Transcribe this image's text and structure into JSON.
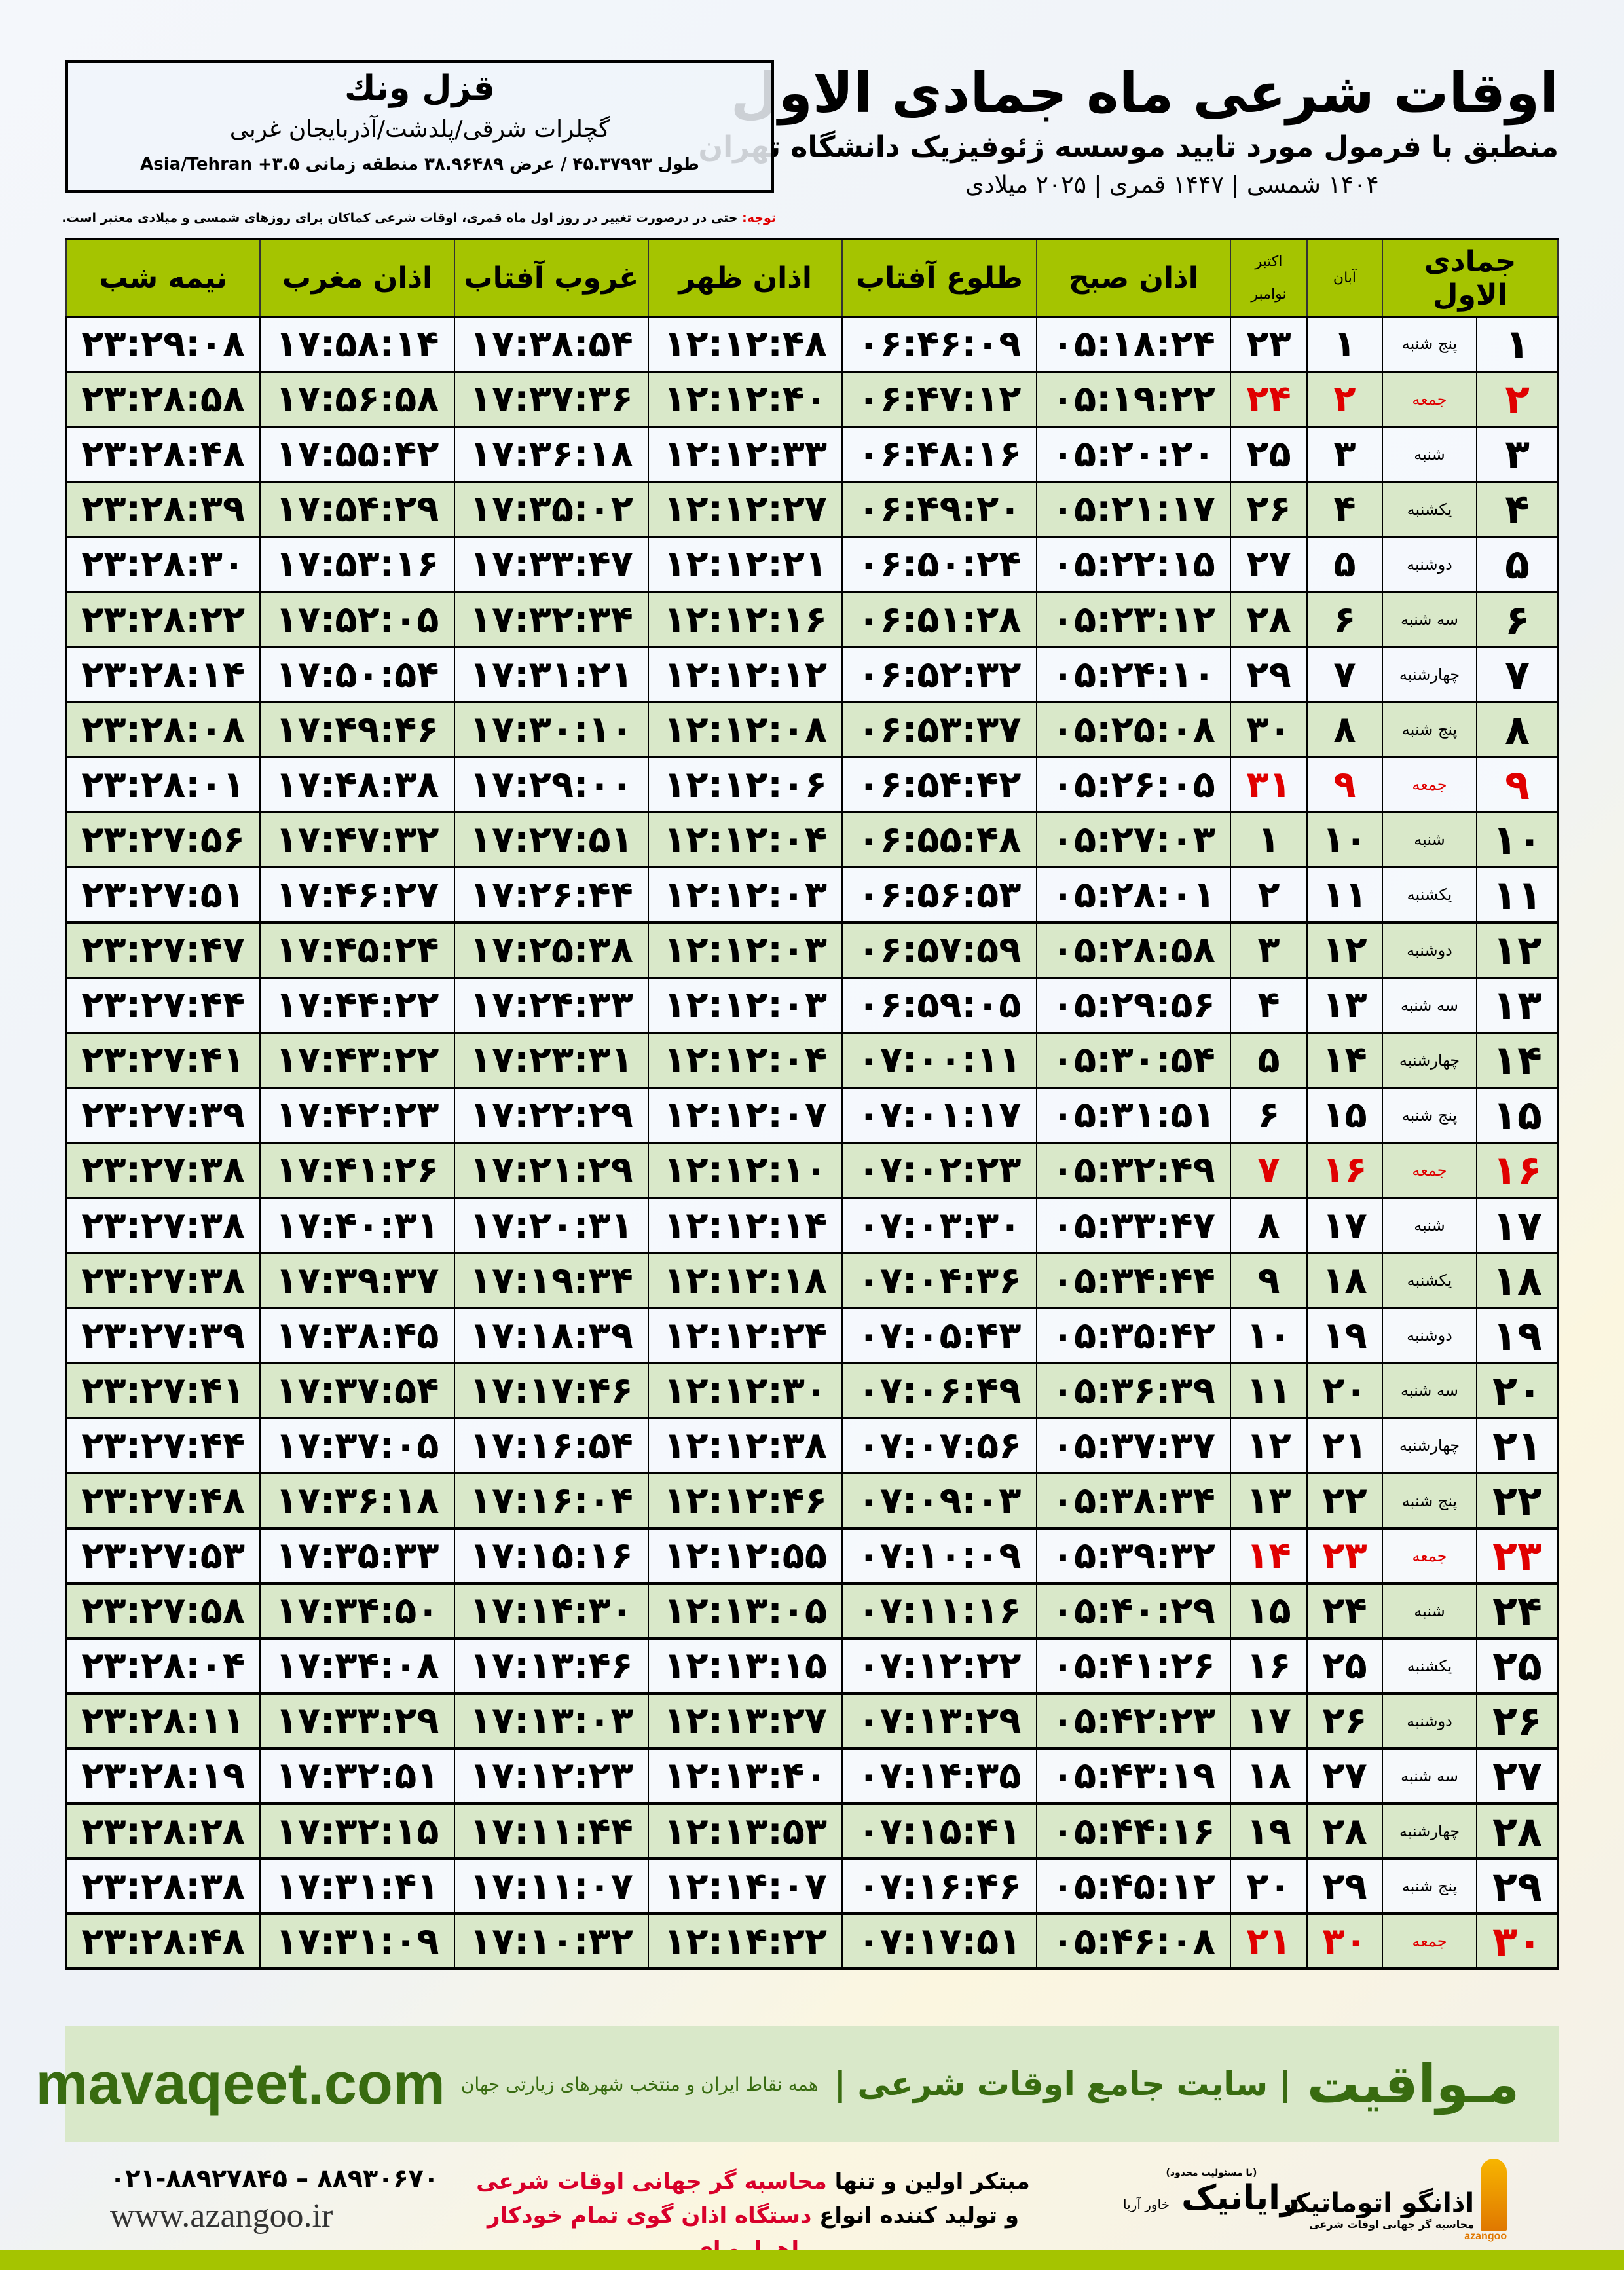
{
  "header": {
    "title": "اوقات شرعی ماه جمادی الاول",
    "subtitle": "منطبق با فرمول مورد تایید موسسه ژئوفیزیک دانشگاه تهران",
    "years": "۱۴۰۴ شمسی | ۱۴۴۷ قمری | ۲۰۲۵ میلادی"
  },
  "location": {
    "city": "قزل ونك",
    "region": "گچلرات شرقی/پلدشت/آذربایجان غربی",
    "coords": "طول ۴۵.۳۷۹۹۳ / عرض ۳۸.۹۶۴۸۹ منطقه زمانی ۳.۵+ Asia/Tehran"
  },
  "note": {
    "label": "توجه:",
    "text": " حتی در درصورت تغییر در روز اول ماه قمری، اوقات شرعی کماکان برای روزهای شمسی و میلادی معتبر است."
  },
  "table": {
    "headers": {
      "month": "جمادی الاول",
      "aban": "آبان",
      "greg": "اکتبر",
      "greg2": "نوامبر",
      "fajr": "اذان صبح",
      "sunrise": "طلوع آفتاب",
      "dhuhr": "اذان ظهر",
      "sunset": "غروب آفتاب",
      "maghrib": "اذان مغرب",
      "midnight": "نیمه شب"
    },
    "colors": {
      "header": "#a5c400",
      "alt_row": "#d9e8c9",
      "friday": "#e00000"
    },
    "rows": [
      {
        "day": "۱",
        "weekday": "پنج شنبه",
        "aban": "۱",
        "greg": "۲۳",
        "fajr": "۰۵:۱۸:۲۴",
        "sunrise": "۰۶:۴۶:۰۹",
        "dhuhr": "۱۲:۱۲:۴۸",
        "sunset": "۱۷:۳۸:۵۴",
        "maghrib": "۱۷:۵۸:۱۴",
        "midnight": "۲۳:۲۹:۰۸",
        "friday": false
      },
      {
        "day": "۲",
        "weekday": "جمعه",
        "aban": "۲",
        "greg": "۲۴",
        "fajr": "۰۵:۱۹:۲۲",
        "sunrise": "۰۶:۴۷:۱۲",
        "dhuhr": "۱۲:۱۲:۴۰",
        "sunset": "۱۷:۳۷:۳۶",
        "maghrib": "۱۷:۵۶:۵۸",
        "midnight": "۲۳:۲۸:۵۸",
        "friday": true
      },
      {
        "day": "۳",
        "weekday": "شنبه",
        "aban": "۳",
        "greg": "۲۵",
        "fajr": "۰۵:۲۰:۲۰",
        "sunrise": "۰۶:۴۸:۱۶",
        "dhuhr": "۱۲:۱۲:۳۳",
        "sunset": "۱۷:۳۶:۱۸",
        "maghrib": "۱۷:۵۵:۴۲",
        "midnight": "۲۳:۲۸:۴۸",
        "friday": false
      },
      {
        "day": "۴",
        "weekday": "یکشنبه",
        "aban": "۴",
        "greg": "۲۶",
        "fajr": "۰۵:۲۱:۱۷",
        "sunrise": "۰۶:۴۹:۲۰",
        "dhuhr": "۱۲:۱۲:۲۷",
        "sunset": "۱۷:۳۵:۰۲",
        "maghrib": "۱۷:۵۴:۲۹",
        "midnight": "۲۳:۲۸:۳۹",
        "friday": false
      },
      {
        "day": "۵",
        "weekday": "دوشنبه",
        "aban": "۵",
        "greg": "۲۷",
        "fajr": "۰۵:۲۲:۱۵",
        "sunrise": "۰۶:۵۰:۲۴",
        "dhuhr": "۱۲:۱۲:۲۱",
        "sunset": "۱۷:۳۳:۴۷",
        "maghrib": "۱۷:۵۳:۱۶",
        "midnight": "۲۳:۲۸:۳۰",
        "friday": false
      },
      {
        "day": "۶",
        "weekday": "سه شنبه",
        "aban": "۶",
        "greg": "۲۸",
        "fajr": "۰۵:۲۳:۱۲",
        "sunrise": "۰۶:۵۱:۲۸",
        "dhuhr": "۱۲:۱۲:۱۶",
        "sunset": "۱۷:۳۲:۳۴",
        "maghrib": "۱۷:۵۲:۰۵",
        "midnight": "۲۳:۲۸:۲۲",
        "friday": false
      },
      {
        "day": "۷",
        "weekday": "چهارشنبه",
        "aban": "۷",
        "greg": "۲۹",
        "fajr": "۰۵:۲۴:۱۰",
        "sunrise": "۰۶:۵۲:۳۲",
        "dhuhr": "۱۲:۱۲:۱۲",
        "sunset": "۱۷:۳۱:۲۱",
        "maghrib": "۱۷:۵۰:۵۴",
        "midnight": "۲۳:۲۸:۱۴",
        "friday": false
      },
      {
        "day": "۸",
        "weekday": "پنج شنبه",
        "aban": "۸",
        "greg": "۳۰",
        "fajr": "۰۵:۲۵:۰۸",
        "sunrise": "۰۶:۵۳:۳۷",
        "dhuhr": "۱۲:۱۲:۰۸",
        "sunset": "۱۷:۳۰:۱۰",
        "maghrib": "۱۷:۴۹:۴۶",
        "midnight": "۲۳:۲۸:۰۸",
        "friday": false
      },
      {
        "day": "۹",
        "weekday": "جمعه",
        "aban": "۹",
        "greg": "۳۱",
        "fajr": "۰۵:۲۶:۰۵",
        "sunrise": "۰۶:۵۴:۴۲",
        "dhuhr": "۱۲:۱۲:۰۶",
        "sunset": "۱۷:۲۹:۰۰",
        "maghrib": "۱۷:۴۸:۳۸",
        "midnight": "۲۳:۲۸:۰۱",
        "friday": true
      },
      {
        "day": "۱۰",
        "weekday": "شنبه",
        "aban": "۱۰",
        "greg": "۱",
        "fajr": "۰۵:۲۷:۰۳",
        "sunrise": "۰۶:۵۵:۴۸",
        "dhuhr": "۱۲:۱۲:۰۴",
        "sunset": "۱۷:۲۷:۵۱",
        "maghrib": "۱۷:۴۷:۳۲",
        "midnight": "۲۳:۲۷:۵۶",
        "friday": false
      },
      {
        "day": "۱۱",
        "weekday": "یکشنبه",
        "aban": "۱۱",
        "greg": "۲",
        "fajr": "۰۵:۲۸:۰۱",
        "sunrise": "۰۶:۵۶:۵۳",
        "dhuhr": "۱۲:۱۲:۰۳",
        "sunset": "۱۷:۲۶:۴۴",
        "maghrib": "۱۷:۴۶:۲۷",
        "midnight": "۲۳:۲۷:۵۱",
        "friday": false
      },
      {
        "day": "۱۲",
        "weekday": "دوشنبه",
        "aban": "۱۲",
        "greg": "۳",
        "fajr": "۰۵:۲۸:۵۸",
        "sunrise": "۰۶:۵۷:۵۹",
        "dhuhr": "۱۲:۱۲:۰۳",
        "sunset": "۱۷:۲۵:۳۸",
        "maghrib": "۱۷:۴۵:۲۴",
        "midnight": "۲۳:۲۷:۴۷",
        "friday": false
      },
      {
        "day": "۱۳",
        "weekday": "سه شنبه",
        "aban": "۱۳",
        "greg": "۴",
        "fajr": "۰۵:۲۹:۵۶",
        "sunrise": "۰۶:۵۹:۰۵",
        "dhuhr": "۱۲:۱۲:۰۳",
        "sunset": "۱۷:۲۴:۳۳",
        "maghrib": "۱۷:۴۴:۲۲",
        "midnight": "۲۳:۲۷:۴۴",
        "friday": false
      },
      {
        "day": "۱۴",
        "weekday": "چهارشنبه",
        "aban": "۱۴",
        "greg": "۵",
        "fajr": "۰۵:۳۰:۵۴",
        "sunrise": "۰۷:۰۰:۱۱",
        "dhuhr": "۱۲:۱۲:۰۴",
        "sunset": "۱۷:۲۳:۳۱",
        "maghrib": "۱۷:۴۳:۲۲",
        "midnight": "۲۳:۲۷:۴۱",
        "friday": false
      },
      {
        "day": "۱۵",
        "weekday": "پنج شنبه",
        "aban": "۱۵",
        "greg": "۶",
        "fajr": "۰۵:۳۱:۵۱",
        "sunrise": "۰۷:۰۱:۱۷",
        "dhuhr": "۱۲:۱۲:۰۷",
        "sunset": "۱۷:۲۲:۲۹",
        "maghrib": "۱۷:۴۲:۲۳",
        "midnight": "۲۳:۲۷:۳۹",
        "friday": false
      },
      {
        "day": "۱۶",
        "weekday": "جمعه",
        "aban": "۱۶",
        "greg": "۷",
        "fajr": "۰۵:۳۲:۴۹",
        "sunrise": "۰۷:۰۲:۲۳",
        "dhuhr": "۱۲:۱۲:۱۰",
        "sunset": "۱۷:۲۱:۲۹",
        "maghrib": "۱۷:۴۱:۲۶",
        "midnight": "۲۳:۲۷:۳۸",
        "friday": true
      },
      {
        "day": "۱۷",
        "weekday": "شنبه",
        "aban": "۱۷",
        "greg": "۸",
        "fajr": "۰۵:۳۳:۴۷",
        "sunrise": "۰۷:۰۳:۳۰",
        "dhuhr": "۱۲:۱۲:۱۴",
        "sunset": "۱۷:۲۰:۳۱",
        "maghrib": "۱۷:۴۰:۳۱",
        "midnight": "۲۳:۲۷:۳۸",
        "friday": false
      },
      {
        "day": "۱۸",
        "weekday": "یکشنبه",
        "aban": "۱۸",
        "greg": "۹",
        "fajr": "۰۵:۳۴:۴۴",
        "sunrise": "۰۷:۰۴:۳۶",
        "dhuhr": "۱۲:۱۲:۱۸",
        "sunset": "۱۷:۱۹:۳۴",
        "maghrib": "۱۷:۳۹:۳۷",
        "midnight": "۲۳:۲۷:۳۸",
        "friday": false
      },
      {
        "day": "۱۹",
        "weekday": "دوشنبه",
        "aban": "۱۹",
        "greg": "۱۰",
        "fajr": "۰۵:۳۵:۴۲",
        "sunrise": "۰۷:۰۵:۴۳",
        "dhuhr": "۱۲:۱۲:۲۴",
        "sunset": "۱۷:۱۸:۳۹",
        "maghrib": "۱۷:۳۸:۴۵",
        "midnight": "۲۳:۲۷:۳۹",
        "friday": false
      },
      {
        "day": "۲۰",
        "weekday": "سه شنبه",
        "aban": "۲۰",
        "greg": "۱۱",
        "fajr": "۰۵:۳۶:۳۹",
        "sunrise": "۰۷:۰۶:۴۹",
        "dhuhr": "۱۲:۱۲:۳۰",
        "sunset": "۱۷:۱۷:۴۶",
        "maghrib": "۱۷:۳۷:۵۴",
        "midnight": "۲۳:۲۷:۴۱",
        "friday": false
      },
      {
        "day": "۲۱",
        "weekday": "چهارشنبه",
        "aban": "۲۱",
        "greg": "۱۲",
        "fajr": "۰۵:۳۷:۳۷",
        "sunrise": "۰۷:۰۷:۵۶",
        "dhuhr": "۱۲:۱۲:۳۸",
        "sunset": "۱۷:۱۶:۵۴",
        "maghrib": "۱۷:۳۷:۰۵",
        "midnight": "۲۳:۲۷:۴۴",
        "friday": false
      },
      {
        "day": "۲۲",
        "weekday": "پنج شنبه",
        "aban": "۲۲",
        "greg": "۱۳",
        "fajr": "۰۵:۳۸:۳۴",
        "sunrise": "۰۷:۰۹:۰۳",
        "dhuhr": "۱۲:۱۲:۴۶",
        "sunset": "۱۷:۱۶:۰۴",
        "maghrib": "۱۷:۳۶:۱۸",
        "midnight": "۲۳:۲۷:۴۸",
        "friday": false
      },
      {
        "day": "۲۳",
        "weekday": "جمعه",
        "aban": "۲۳",
        "greg": "۱۴",
        "fajr": "۰۵:۳۹:۳۲",
        "sunrise": "۰۷:۱۰:۰۹",
        "dhuhr": "۱۲:۱۲:۵۵",
        "sunset": "۱۷:۱۵:۱۶",
        "maghrib": "۱۷:۳۵:۳۳",
        "midnight": "۲۳:۲۷:۵۳",
        "friday": true
      },
      {
        "day": "۲۴",
        "weekday": "شنبه",
        "aban": "۲۴",
        "greg": "۱۵",
        "fajr": "۰۵:۴۰:۲۹",
        "sunrise": "۰۷:۱۱:۱۶",
        "dhuhr": "۱۲:۱۳:۰۵",
        "sunset": "۱۷:۱۴:۳۰",
        "maghrib": "۱۷:۳۴:۵۰",
        "midnight": "۲۳:۲۷:۵۸",
        "friday": false
      },
      {
        "day": "۲۵",
        "weekday": "یکشنبه",
        "aban": "۲۵",
        "greg": "۱۶",
        "fajr": "۰۵:۴۱:۲۶",
        "sunrise": "۰۷:۱۲:۲۲",
        "dhuhr": "۱۲:۱۳:۱۵",
        "sunset": "۱۷:۱۳:۴۶",
        "maghrib": "۱۷:۳۴:۰۸",
        "midnight": "۲۳:۲۸:۰۴",
        "friday": false
      },
      {
        "day": "۲۶",
        "weekday": "دوشنبه",
        "aban": "۲۶",
        "greg": "۱۷",
        "fajr": "۰۵:۴۲:۲۳",
        "sunrise": "۰۷:۱۳:۲۹",
        "dhuhr": "۱۲:۱۳:۲۷",
        "sunset": "۱۷:۱۳:۰۳",
        "maghrib": "۱۷:۳۳:۲۹",
        "midnight": "۲۳:۲۸:۱۱",
        "friday": false
      },
      {
        "day": "۲۷",
        "weekday": "سه شنبه",
        "aban": "۲۷",
        "greg": "۱۸",
        "fajr": "۰۵:۴۳:۱۹",
        "sunrise": "۰۷:۱۴:۳۵",
        "dhuhr": "۱۲:۱۳:۴۰",
        "sunset": "۱۷:۱۲:۲۳",
        "maghrib": "۱۷:۳۲:۵۱",
        "midnight": "۲۳:۲۸:۱۹",
        "friday": false
      },
      {
        "day": "۲۸",
        "weekday": "چهارشنبه",
        "aban": "۲۸",
        "greg": "۱۹",
        "fajr": "۰۵:۴۴:۱۶",
        "sunrise": "۰۷:۱۵:۴۱",
        "dhuhr": "۱۲:۱۳:۵۳",
        "sunset": "۱۷:۱۱:۴۴",
        "maghrib": "۱۷:۳۲:۱۵",
        "midnight": "۲۳:۲۸:۲۸",
        "friday": false
      },
      {
        "day": "۲۹",
        "weekday": "پنج شنبه",
        "aban": "۲۹",
        "greg": "۲۰",
        "fajr": "۰۵:۴۵:۱۲",
        "sunrise": "۰۷:۱۶:۴۶",
        "dhuhr": "۱۲:۱۴:۰۷",
        "sunset": "۱۷:۱۱:۰۷",
        "maghrib": "۱۷:۳۱:۴۱",
        "midnight": "۲۳:۲۸:۳۸",
        "friday": false
      },
      {
        "day": "۳۰",
        "weekday": "جمعه",
        "aban": "۳۰",
        "greg": "۲۱",
        "fajr": "۰۵:۴۶:۰۸",
        "sunrise": "۰۷:۱۷:۵۱",
        "dhuhr": "۱۲:۱۴:۲۲",
        "sunset": "۱۷:۱۰:۳۲",
        "maghrib": "۱۷:۳۱:۰۹",
        "midnight": "۲۳:۲۸:۴۸",
        "friday": true
      }
    ]
  },
  "footer": {
    "brand": "مـواقیت",
    "site_desc": "| سایت جامع اوقات شرعی |",
    "site_sub": "همه نقاط ایران و منتخب شهرهای زیارتی جهان",
    "site_url": "mavaqeet.com",
    "promo_line1_a": "مبتکر اولین و تنها ",
    "promo_line1_b": "محاسبه گر جهانی اوقات شرعی",
    "promo_line2_a": "و تولید کننده انواع ",
    "promo_line2_b": "دستگاه اذان گوی تمام خودکار ماهواره ای",
    "phones": "۰۲۱-۸۸۹۲۷۸۴۵ – ۸۸۹۳۰۶۷۰",
    "az_url": "www.azangoo.ir",
    "logo_rayanik": "رایانیک",
    "logo_rayanik_sub": "خاور آریا",
    "logo_rayanik_note": "(با مسئولیت محدود)",
    "logo_azangoo": "اذانگو اتوماتیک",
    "logo_azangoo_sub": "محاسبه گر جهانی اوقات شرعی",
    "logo_azangoo_en": "azangoo"
  }
}
